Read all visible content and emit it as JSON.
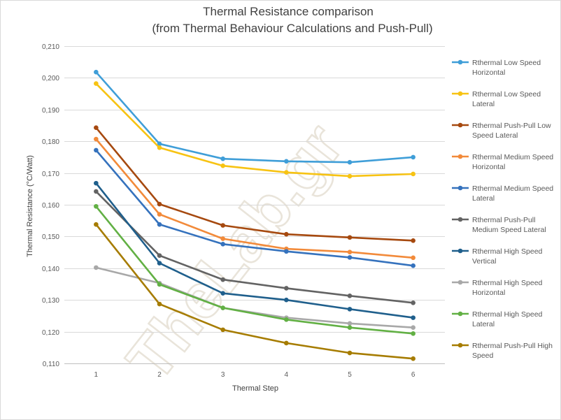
{
  "chart_data": {
    "type": "line",
    "title": "Thermal Resistance comparison",
    "subtitle": "(from Thermal Behaviour Calculations and Push-Pull)",
    "xlabel": "Thermal Step",
    "ylabel": "Thermal Resistance (°C/Watt)",
    "categories": [
      "1",
      "2",
      "3",
      "4",
      "5",
      "6"
    ],
    "ylim": [
      0.11,
      0.21
    ],
    "yticks": [
      "0,110",
      "0,120",
      "0,130",
      "0,140",
      "0,150",
      "0,160",
      "0,170",
      "0,180",
      "0,190",
      "0,200",
      "0,210"
    ],
    "grid": true,
    "legend_position": "right",
    "watermark": "TheLab.gr",
    "series": [
      {
        "name": "Rthermal Low Speed Horizontal",
        "legend_lines": [
          "Rthermal Low Speed",
          "Horizontal"
        ],
        "color": "#3f9ed8",
        "values": [
          0.2018,
          0.1792,
          0.1745,
          0.1737,
          0.1734,
          0.175
        ]
      },
      {
        "name": "Rthermal Low Speed Lateral",
        "legend_lines": [
          "Rthermal Low Speed",
          "Lateral"
        ],
        "color": "#f7c313",
        "values": [
          0.1982,
          0.178,
          0.1723,
          0.1702,
          0.169,
          0.1697
        ]
      },
      {
        "name": "Rthermal Push-Pull Low Speed Lateral",
        "legend_lines": [
          "Rthermal Push-Pull Low",
          "Speed Lateral"
        ],
        "color": "#a6490f",
        "values": [
          0.1843,
          0.1602,
          0.1535,
          0.1507,
          0.1497,
          0.1487
        ]
      },
      {
        "name": "Rthermal Medium Speed Horizontal",
        "legend_lines": [
          "Rthermal Medium Speed",
          "Horizontal"
        ],
        "color": "#f28a3a",
        "values": [
          0.1807,
          0.157,
          0.1493,
          0.1461,
          0.1451,
          0.1433
        ]
      },
      {
        "name": "Rthermal Medium Speed Lateral",
        "legend_lines": [
          "Rthermal Medium Speed",
          "Lateral"
        ],
        "color": "#3572bd",
        "values": [
          0.1772,
          0.1538,
          0.1476,
          0.1453,
          0.1434,
          0.1408
        ]
      },
      {
        "name": "Rthermal Push-Pull Medium Speed Lateral",
        "legend_lines": [
          "Rthermal Push-Pull",
          "Medium Speed Lateral"
        ],
        "color": "#636363",
        "values": [
          0.1642,
          0.144,
          0.1364,
          0.1337,
          0.1313,
          0.1291
        ]
      },
      {
        "name": "Rthermal High Speed Vertical",
        "legend_lines": [
          "Rthermal High Speed",
          "Vertical"
        ],
        "color": "#1f5f8c",
        "values": [
          0.1668,
          0.1416,
          0.1321,
          0.13,
          0.1271,
          0.1244
        ]
      },
      {
        "name": "Rthermal High Speed Horizontal",
        "legend_lines": [
          "Rthermal High Speed",
          "Horizontal"
        ],
        "color": "#a8a8a8",
        "values": [
          0.1402,
          0.1353,
          0.1275,
          0.1244,
          0.1226,
          0.1213
        ]
      },
      {
        "name": "Rthermal High Speed Lateral",
        "legend_lines": [
          "Rthermal High Speed",
          "Lateral"
        ],
        "color": "#62b044",
        "values": [
          0.1595,
          0.1349,
          0.1275,
          0.1238,
          0.1213,
          0.1194
        ]
      },
      {
        "name": "Rthermal Push-Pull High Speed",
        "legend_lines": [
          "Rthermal Push-Pull High",
          "Speed"
        ],
        "color": "#a67c00",
        "values": [
          0.1538,
          0.1287,
          0.1206,
          0.1164,
          0.1133,
          0.1115
        ]
      }
    ]
  }
}
